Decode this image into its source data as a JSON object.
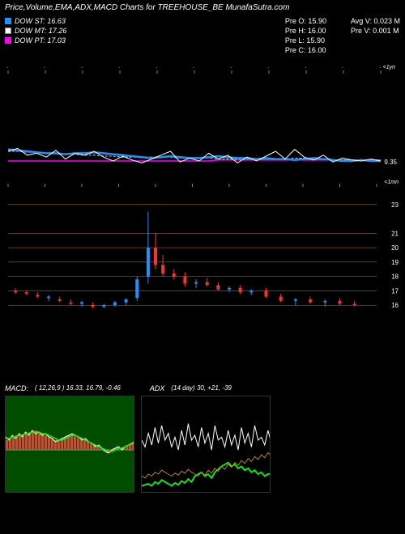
{
  "title": "Price,Volume,EMA,ADX,MACD Charts for TREEHOUSE_BE MunafaSutra.com",
  "dow": {
    "st": {
      "label": "DOW ST: 16.63",
      "color": "#1e90ff"
    },
    "mt": {
      "label": "DOW MT: 17.26",
      "color": "#ffffff"
    },
    "pt": {
      "label": "DOW PT: 17.03",
      "color": "#ff00ff"
    }
  },
  "stats_left": {
    "pre_o": "Pre   O: 15.90",
    "pre_h": "Pre   H: 16.00",
    "pre_l": "Pre   L: 15.90",
    "pre_c": "Pre   C: 16.00"
  },
  "stats_right": {
    "avg_v": "Avg V: 0.023 M",
    "pre_v": "Pre  V: 0.001 M"
  },
  "upper_chart": {
    "type": "line",
    "y_end_label": "9.35",
    "y_label_right": "<1yn",
    "x_ticks": 11,
    "bg": "#000000",
    "lines": {
      "st": {
        "color": "#1e90ff",
        "width": 2.5,
        "points": [
          78,
          79,
          80,
          81,
          82,
          82,
          83,
          82,
          82,
          81,
          82,
          83,
          84,
          85,
          86,
          87,
          86,
          85,
          86,
          87,
          87,
          86,
          85,
          86,
          87,
          87,
          88,
          87,
          88,
          88,
          89,
          88,
          87,
          88,
          89,
          90,
          90,
          89,
          90,
          90
        ]
      },
      "mt": {
        "color": "#ffffff",
        "width": 1,
        "points": [
          80,
          77,
          84,
          82,
          86,
          79,
          88,
          82,
          84,
          80,
          86,
          90,
          85,
          89,
          92,
          88,
          84,
          80,
          91,
          87,
          90,
          82,
          88,
          84,
          92,
          86,
          90,
          85,
          80,
          88,
          78,
          86,
          89,
          84,
          91,
          87,
          89,
          90,
          88,
          90
        ]
      },
      "pt": {
        "color": "#ff00ff",
        "width": 1.5,
        "points": [
          90,
          90,
          90,
          90,
          90,
          90,
          90,
          90,
          90,
          90,
          90,
          90,
          90,
          90,
          90,
          90,
          90,
          90,
          90,
          90,
          90,
          90,
          89,
          89,
          89,
          89,
          89,
          89,
          89,
          89,
          89,
          89,
          89,
          89,
          89,
          89,
          89,
          89,
          89,
          89
        ]
      },
      "dash": {
        "color": "#ffffff",
        "width": 0.8,
        "dash": "3,2",
        "points": [
          80,
          80,
          81,
          81,
          82,
          82,
          83,
          83,
          84,
          84,
          85,
          85,
          86,
          86,
          86,
          86,
          86,
          86,
          87,
          87,
          87,
          87,
          88,
          88,
          88,
          88,
          88,
          88,
          88,
          88,
          87,
          87,
          88,
          88,
          89,
          89,
          89,
          89,
          89,
          89
        ]
      }
    }
  },
  "candle_chart": {
    "type": "candlestick",
    "y_label_right": "<1mn",
    "y_ticks": [
      "23",
      "21",
      "20",
      "19",
      "18",
      "17",
      "16"
    ],
    "y_range": [
      15,
      24
    ],
    "grid_color": "#b8860b",
    "x_ticks": 11,
    "candles": [
      {
        "x": 0.02,
        "o": 17.0,
        "h": 17.2,
        "l": 16.8,
        "c": 16.9,
        "up": false
      },
      {
        "x": 0.05,
        "o": 16.9,
        "h": 17.0,
        "l": 16.7,
        "c": 16.8,
        "up": false
      },
      {
        "x": 0.08,
        "o": 16.7,
        "h": 16.9,
        "l": 16.5,
        "c": 16.6,
        "up": false
      },
      {
        "x": 0.11,
        "o": 16.5,
        "h": 16.7,
        "l": 16.3,
        "c": 16.6,
        "up": true
      },
      {
        "x": 0.14,
        "o": 16.4,
        "h": 16.6,
        "l": 16.2,
        "c": 16.3,
        "up": false
      },
      {
        "x": 0.17,
        "o": 16.2,
        "h": 16.4,
        "l": 16.0,
        "c": 16.1,
        "up": false
      },
      {
        "x": 0.2,
        "o": 16.1,
        "h": 16.3,
        "l": 15.9,
        "c": 16.2,
        "up": true
      },
      {
        "x": 0.23,
        "o": 16.0,
        "h": 16.2,
        "l": 15.8,
        "c": 15.9,
        "up": false
      },
      {
        "x": 0.26,
        "o": 15.9,
        "h": 16.1,
        "l": 15.8,
        "c": 16.0,
        "up": true
      },
      {
        "x": 0.29,
        "o": 16.0,
        "h": 16.3,
        "l": 15.9,
        "c": 16.2,
        "up": true
      },
      {
        "x": 0.32,
        "o": 16.2,
        "h": 16.5,
        "l": 16.0,
        "c": 16.4,
        "up": true
      },
      {
        "x": 0.35,
        "o": 16.5,
        "h": 18.0,
        "l": 16.3,
        "c": 17.8,
        "up": true
      },
      {
        "x": 0.38,
        "o": 18.0,
        "h": 22.5,
        "l": 17.5,
        "c": 20.0,
        "up": true
      },
      {
        "x": 0.4,
        "o": 20.0,
        "h": 21.0,
        "l": 18.5,
        "c": 18.8,
        "up": false
      },
      {
        "x": 0.42,
        "o": 18.8,
        "h": 19.5,
        "l": 18.0,
        "c": 18.2,
        "up": false
      },
      {
        "x": 0.45,
        "o": 18.2,
        "h": 18.5,
        "l": 17.8,
        "c": 18.0,
        "up": false
      },
      {
        "x": 0.48,
        "o": 18.0,
        "h": 18.3,
        "l": 17.3,
        "c": 17.5,
        "up": false
      },
      {
        "x": 0.51,
        "o": 17.5,
        "h": 17.8,
        "l": 17.2,
        "c": 17.6,
        "up": true
      },
      {
        "x": 0.54,
        "o": 17.6,
        "h": 17.9,
        "l": 17.3,
        "c": 17.4,
        "up": false
      },
      {
        "x": 0.57,
        "o": 17.4,
        "h": 17.6,
        "l": 17.0,
        "c": 17.1,
        "up": false
      },
      {
        "x": 0.6,
        "o": 17.1,
        "h": 17.3,
        "l": 16.9,
        "c": 17.2,
        "up": true
      },
      {
        "x": 0.63,
        "o": 17.2,
        "h": 17.4,
        "l": 16.8,
        "c": 16.9,
        "up": false
      },
      {
        "x": 0.66,
        "o": 16.9,
        "h": 17.1,
        "l": 16.7,
        "c": 17.0,
        "up": true
      },
      {
        "x": 0.7,
        "o": 17.0,
        "h": 17.2,
        "l": 16.5,
        "c": 16.6,
        "up": false
      },
      {
        "x": 0.74,
        "o": 16.6,
        "h": 16.8,
        "l": 16.2,
        "c": 16.3,
        "up": false
      },
      {
        "x": 0.78,
        "o": 16.3,
        "h": 16.5,
        "l": 16.0,
        "c": 16.4,
        "up": true
      },
      {
        "x": 0.82,
        "o": 16.4,
        "h": 16.6,
        "l": 16.1,
        "c": 16.2,
        "up": false
      },
      {
        "x": 0.86,
        "o": 16.2,
        "h": 16.4,
        "l": 15.9,
        "c": 16.3,
        "up": true
      },
      {
        "x": 0.9,
        "o": 16.3,
        "h": 16.5,
        "l": 16.0,
        "c": 16.1,
        "up": false
      },
      {
        "x": 0.94,
        "o": 16.1,
        "h": 16.3,
        "l": 15.9,
        "c": 16.0,
        "up": false
      }
    ],
    "colors": {
      "up": "#1e90ff",
      "down": "#ff3030"
    }
  },
  "macd": {
    "label": "MACD:",
    "values": "( 12,26,9 ) 16.33,  16.79,  -0.46",
    "bg": "#004d00",
    "bar_color": "#ff3030",
    "line1_color": "#ffffff",
    "line2_color": "#00ff00",
    "bars": [
      0.3,
      0.35,
      0.4,
      0.45,
      0.5,
      0.5,
      0.5,
      0.55,
      0.6,
      0.6,
      0.55,
      0.5,
      0.45,
      0.4,
      0.35,
      0.3,
      0.3,
      0.35,
      0.4,
      0.45,
      0.5,
      0.45,
      0.4,
      0.35,
      0.3,
      0.25,
      0.2,
      0.15,
      0.1,
      0.05,
      -0.05,
      -0.1,
      -0.05,
      0.05,
      0.1,
      0.05,
      0.1,
      0.15,
      0.2,
      0.25
    ],
    "line1": [
      0.4,
      0.3,
      0.45,
      0.35,
      0.5,
      0.4,
      0.55,
      0.45,
      0.6,
      0.5,
      0.55,
      0.45,
      0.5,
      0.4,
      0.35,
      0.25,
      0.3,
      0.35,
      0.4,
      0.45,
      0.5,
      0.45,
      0.4,
      0.3,
      0.35,
      0.25,
      0.2,
      0.1,
      0.15,
      0.05,
      -0.05,
      -0.1,
      0.0,
      0.05,
      0.1,
      0.0,
      0.1,
      0.15,
      0.2,
      0.25
    ],
    "line2": [
      0.35,
      0.35,
      0.4,
      0.4,
      0.45,
      0.45,
      0.5,
      0.5,
      0.55,
      0.55,
      0.55,
      0.5,
      0.5,
      0.45,
      0.4,
      0.35,
      0.3,
      0.3,
      0.35,
      0.4,
      0.45,
      0.45,
      0.4,
      0.35,
      0.3,
      0.25,
      0.2,
      0.15,
      0.1,
      0.05,
      0.0,
      -0.05,
      -0.05,
      0.0,
      0.05,
      0.05,
      0.1,
      0.15,
      0.18,
      0.22
    ]
  },
  "adx": {
    "label": "ADX",
    "values": "(14   day) 30,  +21,  -39",
    "bg": "#000000",
    "plus_color": "#00ff00",
    "minus_color": "#b8860b",
    "adx_color": "#ffffff",
    "adx_line": [
      55,
      48,
      62,
      50,
      68,
      52,
      70,
      55,
      62,
      48,
      58,
      45,
      65,
      50,
      72,
      55,
      60,
      48,
      68,
      52,
      62,
      45,
      70,
      55,
      58,
      48,
      65,
      50,
      60,
      45,
      68,
      52,
      62,
      48,
      70,
      55,
      58,
      50,
      65,
      52
    ],
    "plus_line": [
      8,
      9,
      10,
      8,
      12,
      10,
      14,
      12,
      10,
      8,
      11,
      9,
      13,
      11,
      15,
      12,
      18,
      20,
      22,
      18,
      20,
      16,
      22,
      25,
      28,
      30,
      32,
      28,
      30,
      26,
      28,
      24,
      26,
      22,
      24,
      20,
      22,
      18,
      20,
      21
    ],
    "minus_line": [
      18,
      16,
      20,
      18,
      22,
      20,
      24,
      22,
      20,
      18,
      21,
      19,
      23,
      21,
      25,
      22,
      20,
      18,
      22,
      19,
      24,
      21,
      26,
      23,
      28,
      25,
      30,
      27,
      32,
      29,
      34,
      31,
      36,
      33,
      38,
      35,
      40,
      37,
      42,
      39
    ]
  }
}
